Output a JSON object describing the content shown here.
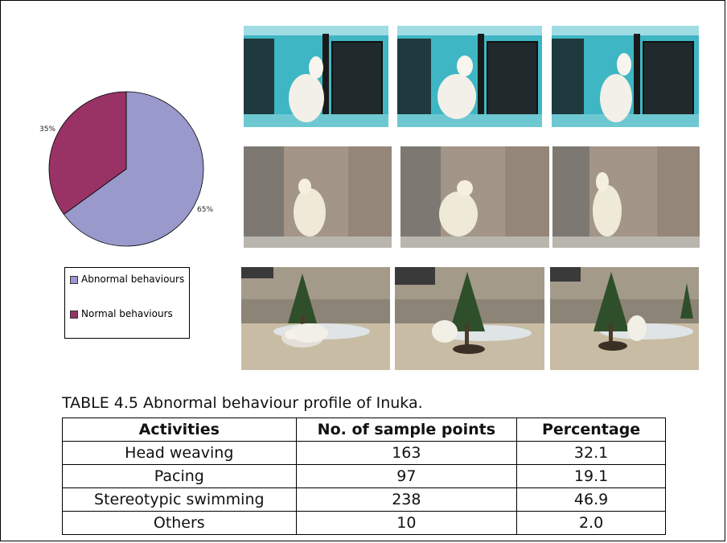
{
  "chart_data": {
    "type": "pie",
    "slices": [
      {
        "label": "Abnormal behaviours",
        "value": 65,
        "display": "65%",
        "color": "#9999cc"
      },
      {
        "label": "Normal behaviours",
        "value": 35,
        "display": "35%",
        "color": "#993366"
      }
    ],
    "legend_position": "bottom"
  },
  "legend": {
    "items": [
      {
        "label": "Abnormal behaviours",
        "color": "#9999cc"
      },
      {
        "label": "Normal behaviours",
        "color": "#993366"
      }
    ]
  },
  "photos": {
    "rows": [
      {
        "scene": "indoor-enclosure-door",
        "frames": 3
      },
      {
        "scene": "rock-wall",
        "frames": 3
      },
      {
        "scene": "outdoor-enclosure-tree",
        "frames": 3
      }
    ]
  },
  "table": {
    "title": "TABLE 4.5 Abnormal behaviour profile of Inuka.",
    "headers": [
      "Activities",
      "No. of sample points",
      "Percentage"
    ],
    "rows": [
      {
        "activity": "Head weaving",
        "points": "163",
        "percentage": "32.1"
      },
      {
        "activity": "Pacing",
        "points": "97",
        "percentage": "19.1"
      },
      {
        "activity": "Stereotypic swimming",
        "points": "238",
        "percentage": "46.9"
      },
      {
        "activity": "Others",
        "points": "10",
        "percentage": "2.0"
      }
    ]
  }
}
